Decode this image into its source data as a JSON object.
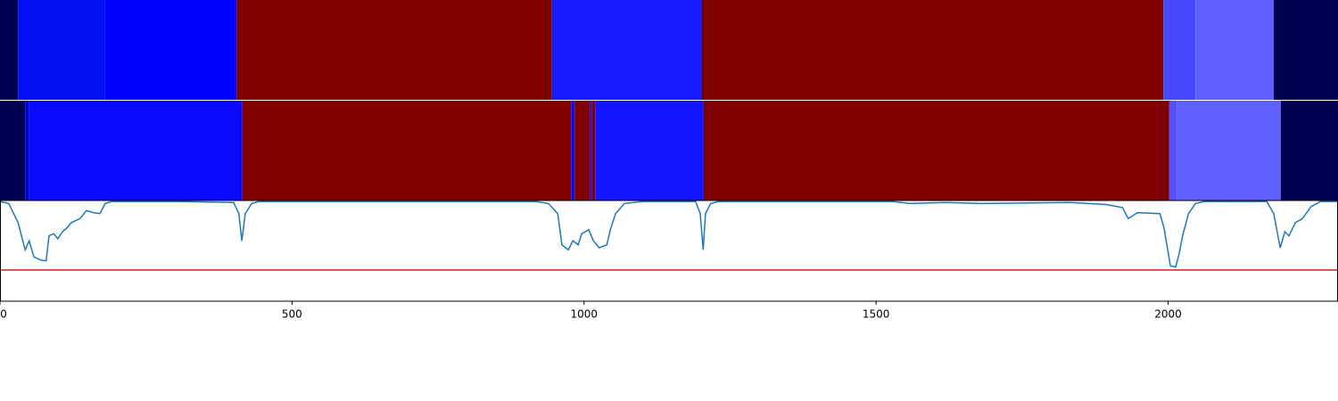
{
  "chart_data": {
    "type": "line",
    "xlim": [
      0,
      2291
    ],
    "ylim": [
      0,
      1
    ],
    "xticks": [
      0,
      500,
      1000,
      1500,
      2000
    ],
    "tracks": [
      {
        "segments": [
          {
            "start": 0,
            "end": 31,
            "color": "#000050"
          },
          {
            "start": 31,
            "end": 180,
            "color": "#0010f0"
          },
          {
            "start": 180,
            "end": 405,
            "color": "#0000ff"
          },
          {
            "start": 405,
            "end": 945,
            "color": "#800000"
          },
          {
            "start": 945,
            "end": 1202,
            "color": "#1a1aff"
          },
          {
            "start": 1202,
            "end": 1992,
            "color": "#800000"
          },
          {
            "start": 1992,
            "end": 2047,
            "color": "#4848ff"
          },
          {
            "start": 2047,
            "end": 2181,
            "color": "#6060ff"
          },
          {
            "start": 2181,
            "end": 2291,
            "color": "#000050"
          }
        ]
      },
      {
        "segments": [
          {
            "start": 0,
            "end": 43,
            "color": "#000050"
          },
          {
            "start": 43,
            "end": 50,
            "color": "#0000cc"
          },
          {
            "start": 50,
            "end": 415,
            "color": "#0a0aff"
          },
          {
            "start": 415,
            "end": 978,
            "color": "#800000"
          },
          {
            "start": 978,
            "end": 984,
            "color": "#0a0aff"
          },
          {
            "start": 984,
            "end": 1010,
            "color": "#800000"
          },
          {
            "start": 1010,
            "end": 1013,
            "color": "#0a0aff"
          },
          {
            "start": 1013,
            "end": 1019,
            "color": "#800000"
          },
          {
            "start": 1019,
            "end": 1205,
            "color": "#1515ff"
          },
          {
            "start": 1205,
            "end": 2002,
            "color": "#800000"
          },
          {
            "start": 2002,
            "end": 2015,
            "color": "#5050ff"
          },
          {
            "start": 2015,
            "end": 2193,
            "color": "#6060ff"
          },
          {
            "start": 2193,
            "end": 2291,
            "color": "#000050"
          }
        ]
      }
    ],
    "threshold": 0.31,
    "threshold_color": "#e41a1c",
    "series": [
      {
        "color": "#1f77b4",
        "x": [
          0,
          15,
          31,
          43,
          50,
          58,
          69,
          79,
          84,
          92,
          99,
          107,
          115,
          122,
          137,
          148,
          160,
          171,
          180,
          191,
          306,
          400,
          409,
          414,
          420,
          431,
          443,
          917,
          939,
          955,
          962,
          973,
          981,
          990,
          996,
          1008,
          1016,
          1026,
          1039,
          1045,
          1054,
          1069,
          1100,
          1191,
          1199,
          1204,
          1208,
          1217,
          1230,
          1528,
          1558,
          1619,
          1680,
          1833,
          1894,
          1922,
          1932,
          1948,
          1986,
          1993,
          2004,
          2013,
          2019,
          2025,
          2035,
          2047,
          2062,
          2169,
          2181,
          2192,
          2200,
          2207,
          2218,
          2230,
          2245,
          2261,
          2291
        ],
        "values": [
          0.99,
          0.97,
          0.78,
          0.51,
          0.6,
          0.44,
          0.41,
          0.4,
          0.65,
          0.67,
          0.62,
          0.69,
          0.73,
          0.78,
          0.82,
          0.9,
          0.88,
          0.87,
          0.97,
          0.99,
          0.99,
          0.98,
          0.87,
          0.6,
          0.87,
          0.97,
          0.99,
          0.99,
          0.97,
          0.87,
          0.56,
          0.51,
          0.6,
          0.56,
          0.67,
          0.71,
          0.6,
          0.53,
          0.56,
          0.71,
          0.87,
          0.97,
          0.99,
          0.99,
          0.87,
          0.51,
          0.87,
          0.97,
          0.99,
          0.99,
          0.97,
          0.98,
          0.97,
          0.98,
          0.96,
          0.93,
          0.82,
          0.88,
          0.87,
          0.73,
          0.35,
          0.34,
          0.47,
          0.65,
          0.87,
          0.97,
          0.99,
          0.99,
          0.87,
          0.53,
          0.69,
          0.65,
          0.78,
          0.82,
          0.94,
          0.99,
          0.99
        ]
      }
    ]
  }
}
